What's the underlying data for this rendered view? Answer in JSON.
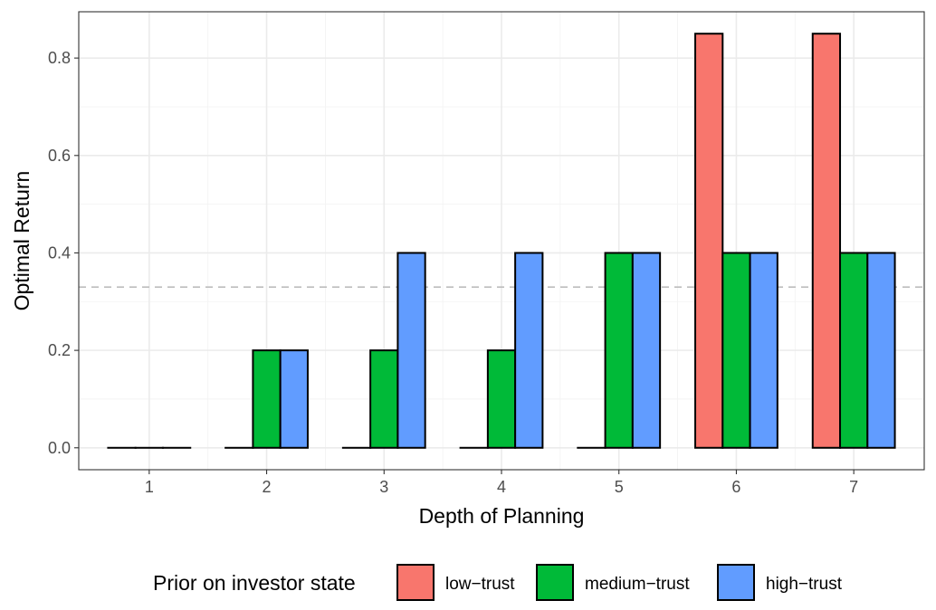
{
  "chart_data": {
    "type": "bar",
    "categories": [
      "1",
      "2",
      "3",
      "4",
      "5",
      "6",
      "7"
    ],
    "series": [
      {
        "name": "low−trust",
        "color": "#F8766D",
        "values": [
          0,
          0,
          0,
          0,
          0,
          0.85,
          0.85
        ]
      },
      {
        "name": "medium−trust",
        "color": "#00BA38",
        "values": [
          0,
          0.2,
          0.2,
          0.2,
          0.4,
          0.4,
          0.4
        ]
      },
      {
        "name": "high−trust",
        "color": "#619CFF",
        "values": [
          0,
          0.2,
          0.4,
          0.4,
          0.4,
          0.4,
          0.4
        ]
      }
    ],
    "xlabel": "Depth of Planning",
    "ylabel": "Optimal Return",
    "ylim": [
      -0.045,
      0.895
    ],
    "yticks": [
      0.0,
      0.2,
      0.4,
      0.6,
      0.8
    ],
    "ytick_labels": [
      "0.0",
      "0.2",
      "0.4",
      "0.6",
      "0.8"
    ],
    "reference_line": {
      "y": 0.33,
      "style": "dashed",
      "color": "#bdbdbd"
    },
    "grid": true,
    "legend": {
      "title": "Prior on investor state",
      "position": "bottom"
    }
  }
}
